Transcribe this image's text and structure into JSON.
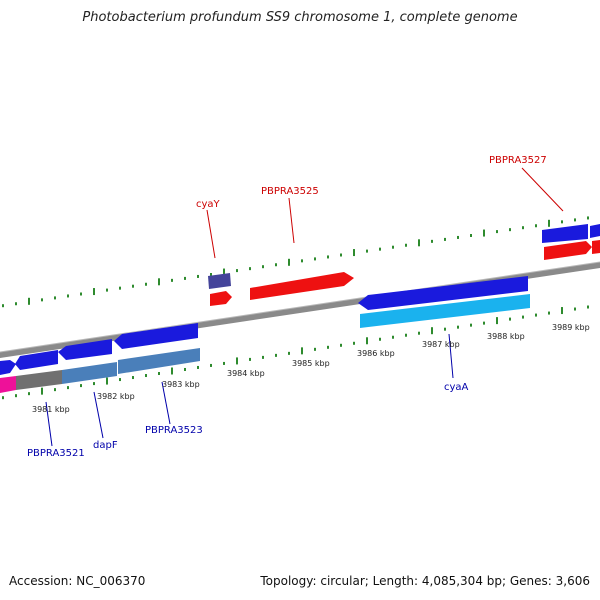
{
  "title": "Photobacterium profundum SS9 chromosome 1, complete genome",
  "footer": {
    "accession": "Accession: NC_006370",
    "stats": "Topology: circular; Length: 4,085,304 bp; Genes: 3,606"
  },
  "colors": {
    "backbone": "#8a8a8a",
    "tick": "#2e8b2e",
    "forward_label": "#cc0000",
    "reverse_label": "#0000aa",
    "forward_gene": "#ee1111",
    "reverse_gene": "#1111dd"
  },
  "kbp_labels": [
    "3981 kbp",
    "3982 kbp",
    "3983 kbp",
    "3984 kbp",
    "3985 kbp",
    "3986 kbp",
    "3987 kbp",
    "3988 kbp",
    "3989 kbp"
  ],
  "forward_gene_labels": [
    "cyaY",
    "PBPRA3525",
    "PBPRA3527"
  ],
  "reverse_gene_labels": [
    "PBPRA3521",
    "dapF",
    "PBPRA3523",
    "cyaA"
  ]
}
